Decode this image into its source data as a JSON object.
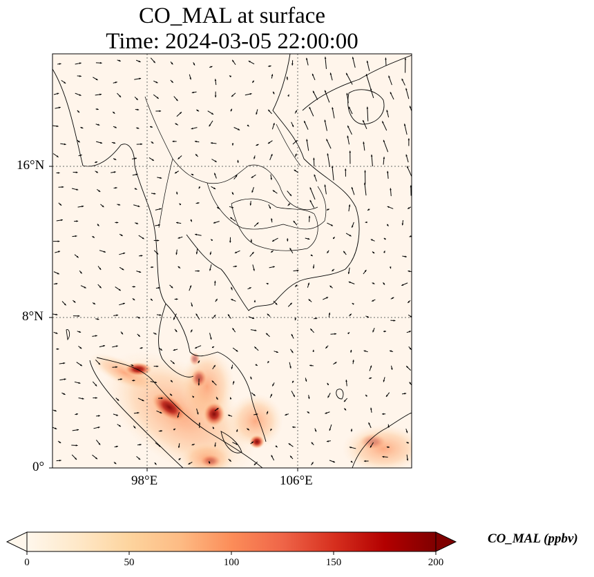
{
  "title": "CO_MAL at surface",
  "subtitle": "Time: 2024-03-05 22:00:00",
  "map": {
    "lat_ticks": [
      "16°N",
      "8°N",
      "0°"
    ],
    "lon_ticks": [
      "98°E",
      "106°E"
    ],
    "extent": {
      "lon": [
        93,
        112
      ],
      "lat": [
        0,
        22
      ]
    },
    "gridlines": true,
    "field_color_low": "#fff5eb",
    "field_color_high": "#7f0000"
  },
  "colorbar": {
    "label": "CO_MAL (ppbv)",
    "ticks": [
      "0",
      "50",
      "100",
      "150",
      "200"
    ],
    "range": [
      0,
      200
    ],
    "extend": "both",
    "colormap": "OrRd",
    "stops": [
      "#fff7ec",
      "#fee8c8",
      "#fdd49e",
      "#fdbb84",
      "#fc8d59",
      "#ef6548",
      "#d7301f",
      "#b30000",
      "#7f0000"
    ]
  }
}
